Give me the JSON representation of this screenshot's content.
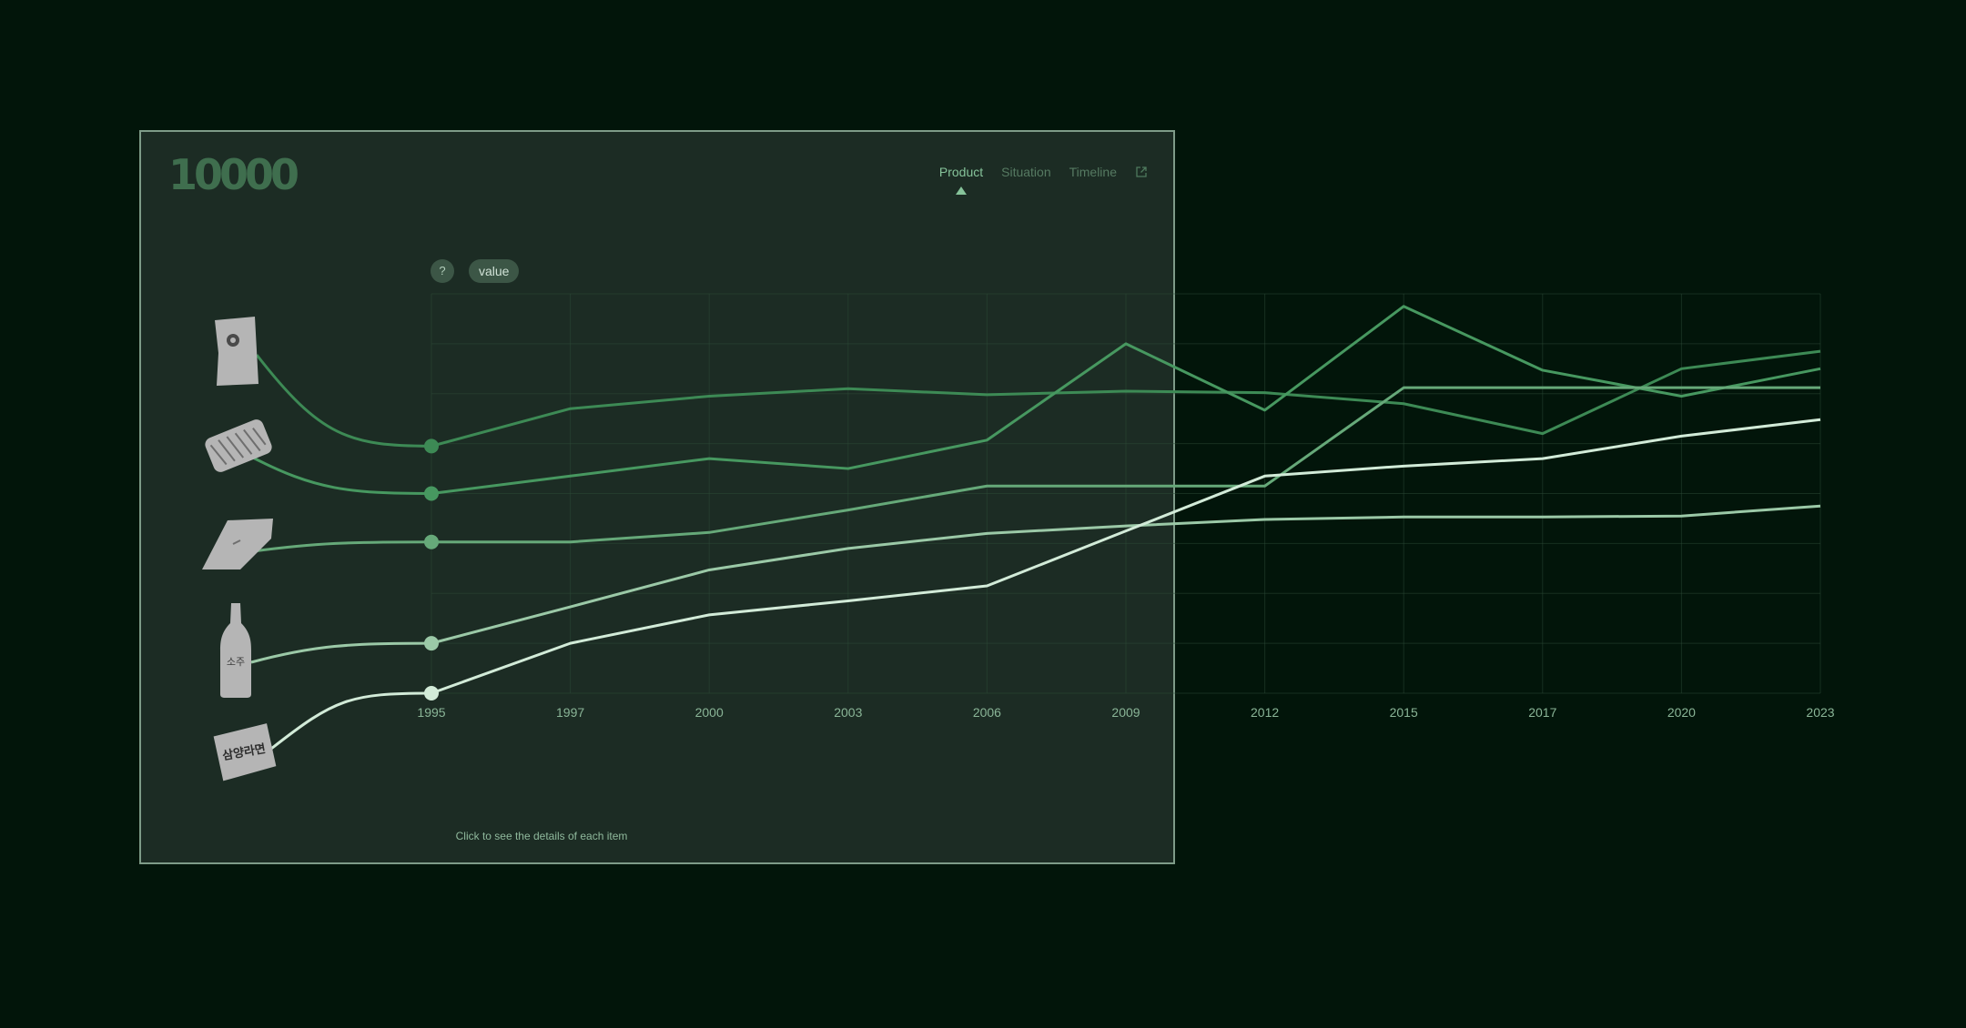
{
  "logo": "10000",
  "nav": {
    "items": [
      "Product",
      "Situation",
      "Timeline"
    ],
    "active": 0
  },
  "controls": {
    "help": "?",
    "value_label": "value"
  },
  "hint": "Click to see the details of each item",
  "icons": {
    "ext": "external-link-icon",
    "products": [
      "chip-bag-icon",
      "snack-bag-icon",
      "gum-pack-icon",
      "soju-bottle-icon",
      "ramen-bag-icon"
    ]
  },
  "product_labels": {
    "soju": "소주",
    "ramen": "삼양라면"
  },
  "colors": {
    "background": "#02150a",
    "panel": "#1c2c24",
    "series": [
      "#3d8a55",
      "#479860",
      "#66a979",
      "#9bc9a7",
      "#d2ebd8"
    ]
  },
  "chart_data": {
    "type": "line",
    "x": [
      1995,
      1997,
      2000,
      2003,
      2006,
      2009,
      2012,
      2015,
      2017,
      2020,
      2023
    ],
    "xlabel": "",
    "ylabel": "",
    "ylim": [
      0,
      8
    ],
    "grid": true,
    "series": [
      {
        "values": [
          4.95,
          5.7,
          5.95,
          6.1,
          5.98,
          6.05,
          6.02,
          5.8,
          5.2,
          6.5,
          6.85
        ]
      },
      {
        "values": [
          4.0,
          4.35,
          4.7,
          4.5,
          5.07,
          7.0,
          5.67,
          7.75,
          6.47,
          5.95,
          6.5
        ]
      },
      {
        "values": [
          3.03,
          3.03,
          3.22,
          3.67,
          4.15,
          4.15,
          4.15,
          6.12,
          6.12,
          6.12,
          6.12
        ]
      },
      {
        "values": [
          1.0,
          1.73,
          2.47,
          2.9,
          3.2,
          3.35,
          3.48,
          3.53,
          3.53,
          3.55,
          3.75
        ]
      },
      {
        "values": [
          0.0,
          1.0,
          1.57,
          1.85,
          2.15,
          3.25,
          4.35,
          4.55,
          4.7,
          5.15,
          5.48
        ]
      }
    ]
  }
}
